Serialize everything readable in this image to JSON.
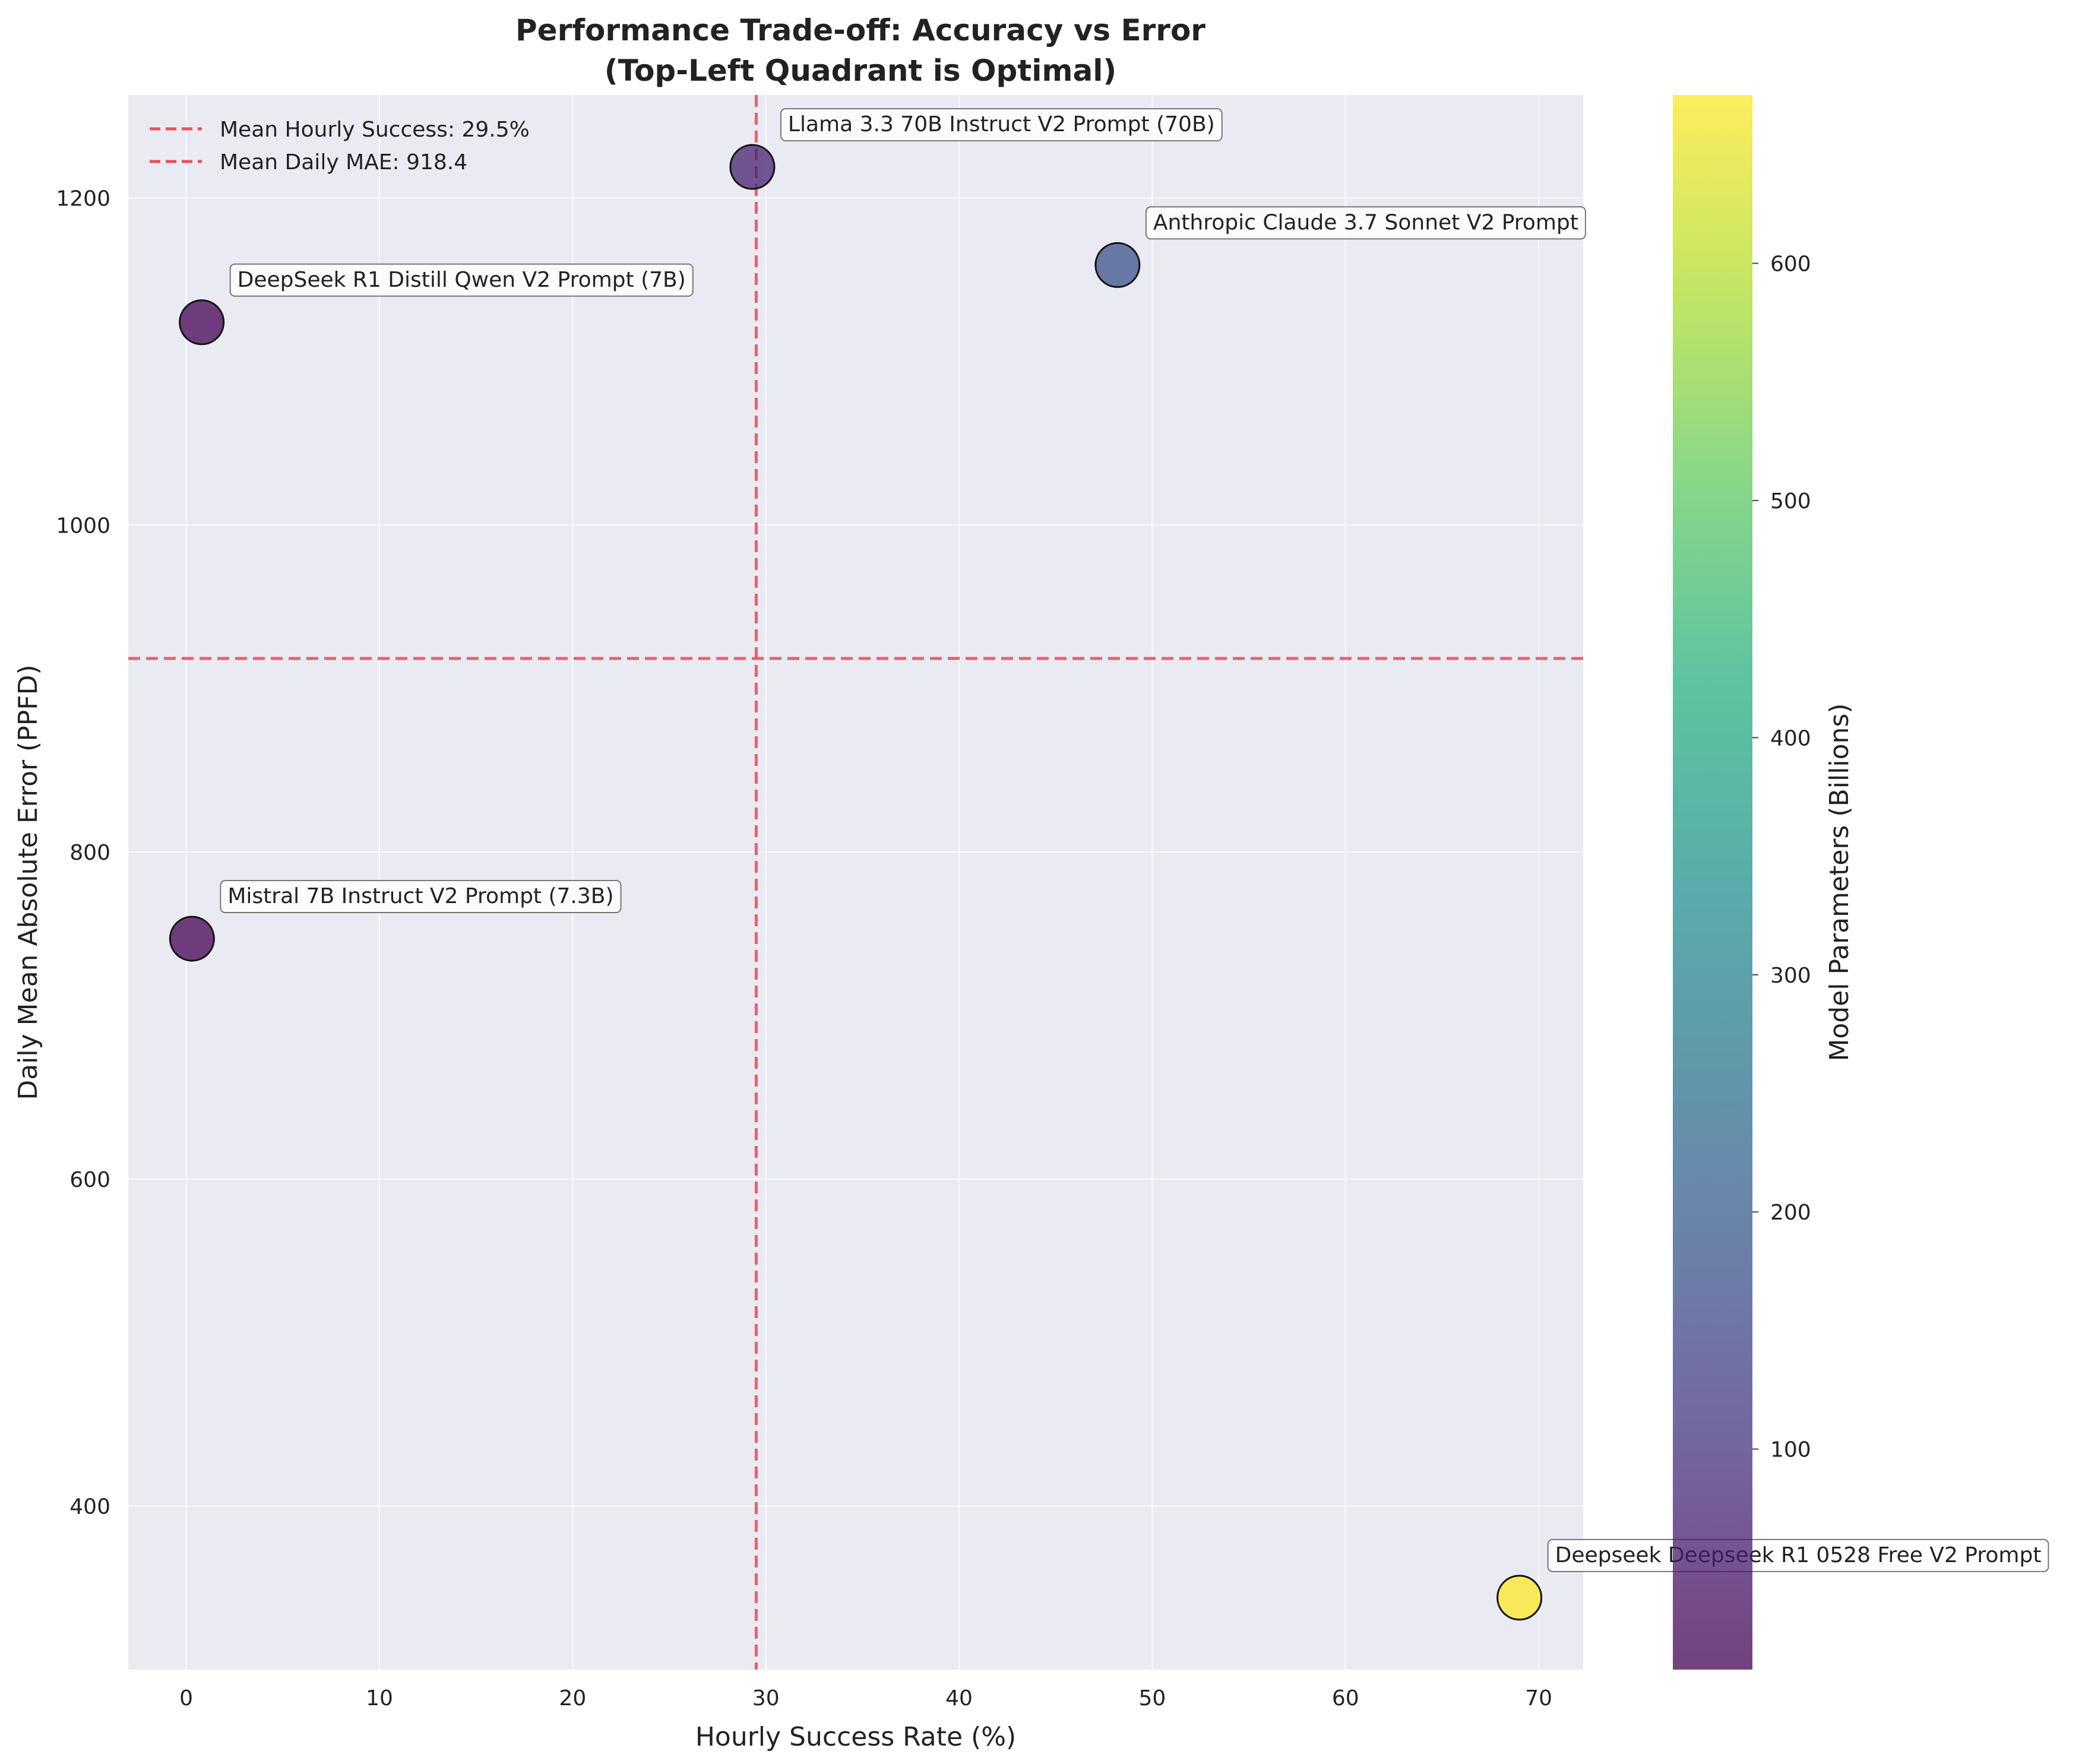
{
  "chart_data": {
    "type": "scatter",
    "title": "Performance Trade-off: Accuracy vs Error",
    "subtitle": "(Top-Left Quadrant is Optimal)",
    "xlabel": "Hourly Success Rate (%)",
    "ylabel": "Daily Mean Absolute Error (PPFD)",
    "xlim": [
      -3,
      72.3
    ],
    "ylim": [
      300,
      1263
    ],
    "xticks": [
      0,
      10,
      20,
      30,
      40,
      50,
      60,
      70
    ],
    "yticks": [
      400,
      600,
      800,
      1000,
      1200
    ],
    "grid": true,
    "legend_position": "top-left",
    "reference_lines": [
      {
        "orientation": "vertical",
        "value": 29.5,
        "label": "Mean Hourly Success: 29.5%",
        "color": "#e8525d"
      },
      {
        "orientation": "horizontal",
        "value": 918.4,
        "label": "Mean Daily MAE: 918.4",
        "color": "#e8525d"
      }
    ],
    "points": [
      {
        "label": "Llama 3.3 70B Instruct V2 Prompt (70B)",
        "x": 29.3,
        "y": 1219,
        "params": 70
      },
      {
        "label": "Anthropic Claude 3.7 Sonnet V2 Prompt",
        "x": 48.2,
        "y": 1159,
        "params": 175
      },
      {
        "label": "DeepSeek R1 Distill Qwen V2 Prompt (7B)",
        "x": 0.8,
        "y": 1124,
        "params": 7
      },
      {
        "label": "Mistral 7B Instruct V2 Prompt (7.3B)",
        "x": 0.3,
        "y": 747,
        "params": 7.3
      },
      {
        "label": "Deepseek Deepseek R1 0528 Free V2 Prompt",
        "x": 69.0,
        "y": 344,
        "params": 671
      }
    ],
    "colorbar": {
      "label": "Model Parameters (Billions)",
      "min": 7,
      "max": 671,
      "ticks": [
        100,
        200,
        300,
        400,
        500,
        600
      ],
      "colormap": "viridis"
    }
  }
}
